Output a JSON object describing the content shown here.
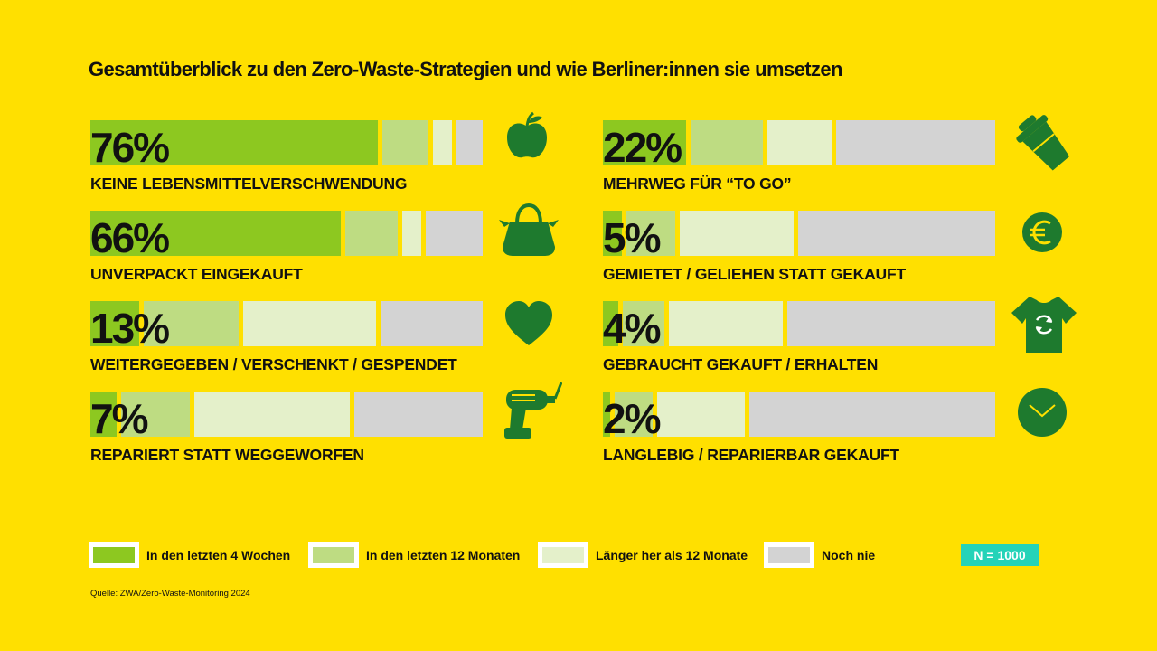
{
  "title": "Gesamtüberblick zu den Zero-Waste-Strategien und wie Berliner:innen sie umsetzen",
  "colors": {
    "background": "#FFE000",
    "last4weeks": "#8DC820",
    "last12months": "#BEDC82",
    "longer": "#E4F0CA",
    "never": "#D3D3D3",
    "icon": "#1E7A2E",
    "badge": "#25D3B8"
  },
  "chart_data": {
    "type": "bar",
    "orientation": "horizontal",
    "stacked": true,
    "unit": "%",
    "series_names": [
      "In den letzten 4 Wochen",
      "In den letzten 12 Monaten",
      "Länger her als 12 Monate",
      "Noch nie"
    ],
    "items": [
      {
        "label": "KEINE LEBENSMITTELVERSCHWENDUNG",
        "value_label": "76%",
        "icon": "apple-icon",
        "values": [
          76,
          12,
          5,
          7
        ]
      },
      {
        "label": "UNVERPACKT EINGEKAUFT",
        "value_label": "66%",
        "icon": "shopping-bag-icon",
        "values": [
          66,
          14,
          5,
          15
        ]
      },
      {
        "label": "WEITERGEGEBEN / VERSCHENKT / GESPENDET",
        "value_label": "13%",
        "icon": "heart-icon",
        "values": [
          13,
          25,
          35,
          27
        ]
      },
      {
        "label": "REPARIERT STATT WEGGEWORFEN",
        "value_label": "7%",
        "icon": "drill-icon",
        "values": [
          7,
          18,
          41,
          34
        ]
      },
      {
        "label": "MEHRWEG FÜR “TO GO”",
        "value_label": "22%",
        "icon": "reusable-cup-icon",
        "values": [
          22,
          19,
          17,
          42
        ]
      },
      {
        "label": "GEMIETET / GELIEHEN STATT GEKAUFT",
        "value_label": "5%",
        "icon": "euro-coin-icon",
        "values": [
          5,
          13,
          30,
          52
        ]
      },
      {
        "label": "GEBRAUCHT GEKAUFT / ERHALTEN",
        "value_label": "4%",
        "icon": "recycled-shirt-icon",
        "values": [
          4,
          11,
          30,
          55
        ]
      },
      {
        "label": "LANGLEBIG / REPARIERBAR GEKAUFT",
        "value_label": "2%",
        "icon": "clock-icon",
        "values": [
          2,
          10,
          23,
          65
        ]
      }
    ]
  },
  "legend": [
    {
      "label": "In den letzten 4 Wochen",
      "color": "#8DC820"
    },
    {
      "label": "In den letzten 12 Monaten",
      "color": "#BEDC82"
    },
    {
      "label": "Länger her als 12 Monate",
      "color": "#E4F0CA"
    },
    {
      "label": "Noch nie",
      "color": "#D3D3D3"
    }
  ],
  "n_label": "N = 1000",
  "source": "Quelle: ZWA/Zero-Waste-Monitoring 2024"
}
